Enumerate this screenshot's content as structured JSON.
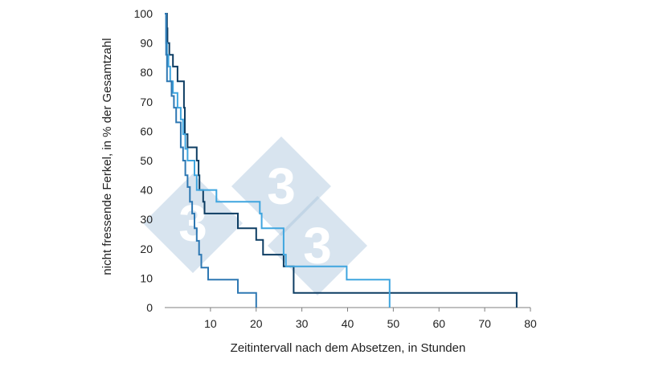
{
  "chart_data": {
    "type": "line",
    "title": "",
    "xlabel": "Zeitintervall nach dem Absetzen, in Stunden",
    "ylabel": "nicht fressende Ferkel, in % der Gesamtzahl",
    "xlim": [
      0,
      80
    ],
    "ylim": [
      0,
      100
    ],
    "x_ticks": [
      "10",
      "20",
      "30",
      "40",
      "50",
      "60",
      "70",
      "80"
    ],
    "y_ticks": [
      "0",
      "10",
      "20",
      "30",
      "40",
      "50",
      "60",
      "70",
      "80",
      "90",
      "100"
    ],
    "grid": false,
    "legend": "none",
    "watermark": {
      "text": [
        "3",
        "3",
        "3"
      ],
      "color": "#a9c4dc"
    },
    "series": [
      {
        "color": "#0d3d63",
        "x": [
          0,
          0.5,
          0.6,
          1.0,
          1.2,
          1.8,
          2.0,
          2.8,
          3.0,
          4.2,
          4.4,
          4.8,
          5.0,
          6.5,
          7.0,
          7.4,
          7.6,
          8.0,
          8.4,
          8.7,
          15.5,
          16.0,
          19.5,
          20.0,
          21.0,
          21.5,
          25.5,
          26.0,
          28.0,
          28.2,
          76.8,
          77.0
        ],
        "y": [
          100,
          95,
          90,
          86,
          86,
          82,
          82,
          77,
          77,
          68,
          59,
          59,
          54.5,
          54.5,
          50,
          45,
          40,
          40,
          36,
          32,
          32,
          27,
          27,
          23,
          23,
          18,
          18,
          14,
          14,
          5,
          5,
          0
        ]
      },
      {
        "color": "#3fa5df",
        "x": [
          0,
          0.3,
          0.5,
          0.8,
          1.2,
          1.8,
          2.5,
          2.8,
          3.5,
          4.0,
          4.5,
          5.0,
          6.0,
          6.5,
          7.0,
          7.5,
          8.0,
          11.0,
          11.3,
          20.5,
          20.8,
          21.2,
          25.5,
          26.0,
          26.5,
          39.5,
          39.8,
          49.0,
          49.2
        ],
        "y": [
          100,
          90,
          86,
          82,
          77,
          73,
          73,
          68,
          64,
          59,
          54,
          50,
          50,
          45,
          40,
          40,
          40,
          40,
          36,
          36,
          32,
          27,
          27,
          18,
          14,
          14,
          9.5,
          9.5,
          0
        ]
      },
      {
        "color": "#2e78b3",
        "x": [
          0,
          0.3,
          0.5,
          1.0,
          1.5,
          2.0,
          2.5,
          3.0,
          3.5,
          4.0,
          4.5,
          5.0,
          5.5,
          6.0,
          6.5,
          7.0,
          7.5,
          8.0,
          9.5,
          15.5,
          16.0,
          19.5,
          20.0
        ],
        "y": [
          100,
          86,
          77,
          77,
          72,
          68,
          63,
          63,
          54.5,
          50,
          45,
          41,
          36,
          32,
          27,
          22.7,
          18,
          13.6,
          9.5,
          9.5,
          5,
          5,
          0
        ]
      }
    ]
  }
}
